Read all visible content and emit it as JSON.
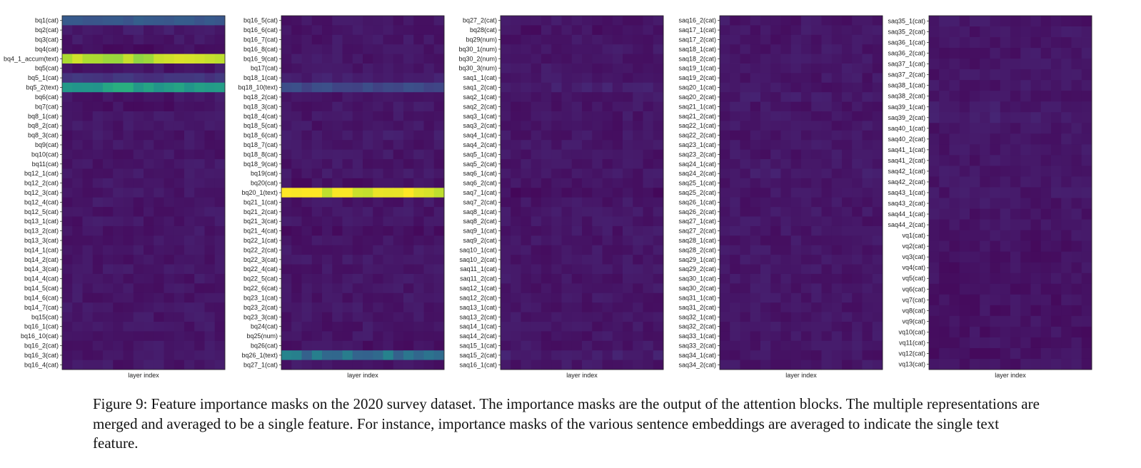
{
  "caption": "Figure 9: Feature importance masks on the 2020 survey dataset. The importance masks are the output of the attention blocks. The multiple representations are merged and averaged to be a single feature. For instance, importance masks of the various sentence embeddings are averaged to indicate the single text feature.",
  "colormap": [
    "#440154",
    "#472d7b",
    "#3b528b",
    "#2c728e",
    "#21918c",
    "#28ae80",
    "#5ec962",
    "#addc30",
    "#fde725"
  ],
  "chart_data": [
    {
      "type": "heatmap",
      "xlabel": "layer index",
      "columns": 16,
      "rows": [
        "bq1(cat)",
        "bq2(cat)",
        "bq3(cat)",
        "bq4(cat)",
        "bq4_1_accum(text)",
        "bq5(cat)",
        "bq5_1(cat)",
        "bq5_2(text)",
        "bq6(cat)",
        "bq7(cat)",
        "bq8_1(cat)",
        "bq8_2(cat)",
        "bq8_3(cat)",
        "bq9(cat)",
        "bq10(cat)",
        "bq11(cat)",
        "bq12_1(cat)",
        "bq12_2(cat)",
        "bq12_3(cat)",
        "bq12_4(cat)",
        "bq12_5(cat)",
        "bq13_1(cat)",
        "bq13_2(cat)",
        "bq13_3(cat)",
        "bq14_1(cat)",
        "bq14_2(cat)",
        "bq14_3(cat)",
        "bq14_4(cat)",
        "bq14_5(cat)",
        "bq14_6(cat)",
        "bq14_7(cat)",
        "bq15(cat)",
        "bq16_1(cat)",
        "bq16_10(cat)",
        "bq16_2(cat)",
        "bq16_3(cat)",
        "bq16_4(cat)"
      ],
      "row_levels": [
        0.28,
        0.07,
        0.06,
        0.04,
        0.88,
        0.06,
        0.15,
        0.58,
        0.06,
        0.05,
        0.06,
        0.06,
        0.06,
        0.06,
        0.06,
        0.06,
        0.06,
        0.06,
        0.06,
        0.06,
        0.06,
        0.06,
        0.06,
        0.06,
        0.06,
        0.06,
        0.06,
        0.06,
        0.06,
        0.06,
        0.06,
        0.06,
        0.06,
        0.06,
        0.06,
        0.06,
        0.06
      ]
    },
    {
      "type": "heatmap",
      "xlabel": "layer index",
      "columns": 16,
      "rows": [
        "bq16_5(cat)",
        "bq16_6(cat)",
        "bq16_7(cat)",
        "bq16_8(cat)",
        "bq16_9(cat)",
        "bq17(cat)",
        "bq18_1(cat)",
        "bq18_10(text)",
        "bq18_2(cat)",
        "bq18_3(cat)",
        "bq18_4(cat)",
        "bq18_5(cat)",
        "bq18_6(cat)",
        "bq18_7(cat)",
        "bq18_8(cat)",
        "bq18_9(cat)",
        "bq19(cat)",
        "bq20(cat)",
        "bq20_1(text)",
        "bq21_1(cat)",
        "bq21_2(cat)",
        "bq21_3(cat)",
        "bq21_4(cat)",
        "bq22_1(cat)",
        "bq22_2(cat)",
        "bq22_3(cat)",
        "bq22_4(cat)",
        "bq22_5(cat)",
        "bq22_6(cat)",
        "bq23_1(cat)",
        "bq23_2(cat)",
        "bq23_3(cat)",
        "bq24(cat)",
        "bq25(num)",
        "bq26(cat)",
        "bq26_1(text)",
        "bq27_1(cat)"
      ],
      "row_levels": [
        0.06,
        0.06,
        0.06,
        0.06,
        0.06,
        0.06,
        0.08,
        0.22,
        0.06,
        0.06,
        0.06,
        0.06,
        0.07,
        0.06,
        0.06,
        0.06,
        0.06,
        0.05,
        0.96,
        0.06,
        0.06,
        0.06,
        0.04,
        0.06,
        0.06,
        0.06,
        0.06,
        0.06,
        0.06,
        0.06,
        0.06,
        0.06,
        0.06,
        0.06,
        0.05,
        0.38,
        0.06
      ]
    },
    {
      "type": "heatmap",
      "xlabel": "layer index",
      "columns": 16,
      "rows": [
        "bq27_2(cat)",
        "bq28(cat)",
        "bq29(num)",
        "bq30_1(num)",
        "bq30_2(num)",
        "bq30_3(num)",
        "saq1_1(cat)",
        "saq1_2(cat)",
        "saq2_1(cat)",
        "saq2_2(cat)",
        "saq3_1(cat)",
        "saq3_2(cat)",
        "saq4_1(cat)",
        "saq4_2(cat)",
        "saq5_1(cat)",
        "saq5_2(cat)",
        "saq6_1(cat)",
        "saq6_2(cat)",
        "saq7_1(cat)",
        "saq7_2(cat)",
        "saq8_1(cat)",
        "saq8_2(cat)",
        "saq9_1(cat)",
        "saq9_2(cat)",
        "saq10_1(cat)",
        "saq10_2(cat)",
        "saq11_1(cat)",
        "saq11_2(cat)",
        "saq12_1(cat)",
        "saq12_2(cat)",
        "saq13_1(cat)",
        "saq13_2(cat)",
        "saq14_1(cat)",
        "saq14_2(cat)",
        "saq15_1(cat)",
        "saq15_2(cat)",
        "saq16_1(cat)"
      ],
      "row_levels": [
        0.06,
        0.05,
        0.06,
        0.06,
        0.06,
        0.06,
        0.06,
        0.08,
        0.06,
        0.06,
        0.06,
        0.06,
        0.06,
        0.06,
        0.06,
        0.06,
        0.06,
        0.06,
        0.04,
        0.06,
        0.06,
        0.06,
        0.06,
        0.06,
        0.06,
        0.06,
        0.06,
        0.06,
        0.06,
        0.06,
        0.06,
        0.06,
        0.06,
        0.06,
        0.06,
        0.08,
        0.06
      ]
    },
    {
      "type": "heatmap",
      "xlabel": "layer index",
      "columns": 16,
      "rows": [
        "saq16_2(cat)",
        "saq17_1(cat)",
        "saq17_2(cat)",
        "saq18_1(cat)",
        "saq18_2(cat)",
        "saq19_1(cat)",
        "saq19_2(cat)",
        "saq20_1(cat)",
        "saq20_2(cat)",
        "saq21_1(cat)",
        "saq21_2(cat)",
        "saq22_1(cat)",
        "saq22_2(cat)",
        "saq23_1(cat)",
        "saq23_2(cat)",
        "saq24_1(cat)",
        "saq24_2(cat)",
        "saq25_1(cat)",
        "saq25_2(cat)",
        "saq26_1(cat)",
        "saq26_2(cat)",
        "saq27_1(cat)",
        "saq27_2(cat)",
        "saq28_1(cat)",
        "saq28_2(cat)",
        "saq29_1(cat)",
        "saq29_2(cat)",
        "saq30_1(cat)",
        "saq30_2(cat)",
        "saq31_1(cat)",
        "saq31_2(cat)",
        "saq32_1(cat)",
        "saq32_2(cat)",
        "saq33_1(cat)",
        "saq33_2(cat)",
        "saq34_1(cat)",
        "saq34_2(cat)"
      ],
      "row_levels": [
        0.06,
        0.06,
        0.06,
        0.06,
        0.06,
        0.06,
        0.06,
        0.06,
        0.07,
        0.06,
        0.06,
        0.06,
        0.06,
        0.06,
        0.06,
        0.06,
        0.07,
        0.06,
        0.06,
        0.06,
        0.06,
        0.06,
        0.06,
        0.06,
        0.06,
        0.06,
        0.06,
        0.06,
        0.06,
        0.06,
        0.06,
        0.06,
        0.06,
        0.06,
        0.06,
        0.06,
        0.06
      ]
    },
    {
      "type": "heatmap",
      "xlabel": "layer index",
      "columns": 16,
      "rows": [
        "saq35_1(cat)",
        "saq35_2(cat)",
        "saq36_1(cat)",
        "saq36_2(cat)",
        "saq37_1(cat)",
        "saq37_2(cat)",
        "saq38_1(cat)",
        "saq38_2(cat)",
        "saq39_1(cat)",
        "saq39_2(cat)",
        "saq40_1(cat)",
        "saq40_2(cat)",
        "saq41_1(cat)",
        "saq41_2(cat)",
        "saq42_1(cat)",
        "saq42_2(cat)",
        "saq43_1(cat)",
        "saq43_2(cat)",
        "saq44_1(cat)",
        "saq44_2(cat)",
        "vq1(cat)",
        "vq2(cat)",
        "vq3(cat)",
        "vq4(cat)",
        "vq5(cat)",
        "vq6(cat)",
        "vq7(cat)",
        "vq8(cat)",
        "vq9(cat)",
        "vq10(cat)",
        "vq11(cat)",
        "vq12(cat)",
        "vq13(cat)"
      ],
      "row_levels": [
        0.06,
        0.06,
        0.06,
        0.06,
        0.06,
        0.06,
        0.06,
        0.06,
        0.07,
        0.08,
        0.06,
        0.06,
        0.06,
        0.06,
        0.06,
        0.06,
        0.06,
        0.06,
        0.06,
        0.06,
        0.05,
        0.05,
        0.05,
        0.05,
        0.05,
        0.05,
        0.05,
        0.05,
        0.05,
        0.05,
        0.05,
        0.05,
        0.05
      ]
    }
  ]
}
